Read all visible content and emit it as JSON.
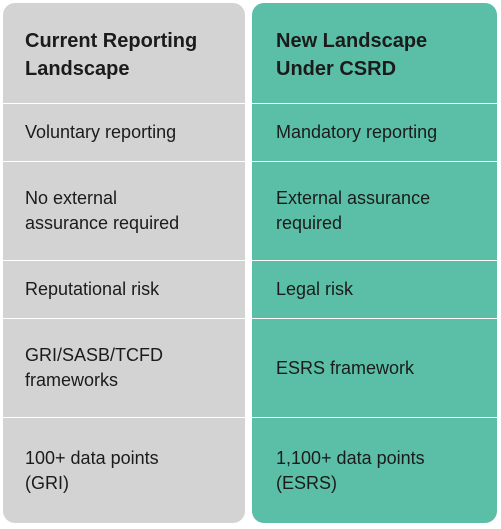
{
  "columns": {
    "current": {
      "header": "Current Reporting\nLandscape",
      "rows": [
        "Voluntary reporting",
        "No external\nassurance required",
        "Reputational risk",
        "GRI/SASB/TCFD\nframeworks",
        "100+ data points\n(GRI)"
      ]
    },
    "new": {
      "header": "New Landscape\nUnder CSRD",
      "rows": [
        "Mandatory reporting",
        "External assurance\nrequired",
        "Legal risk",
        "ESRS framework",
        "1,100+ data points\n(ESRS)"
      ]
    }
  },
  "colors": {
    "current_bg": "#d3d3d3",
    "new_bg": "#5bbfa8",
    "divider": "#ffffff"
  }
}
